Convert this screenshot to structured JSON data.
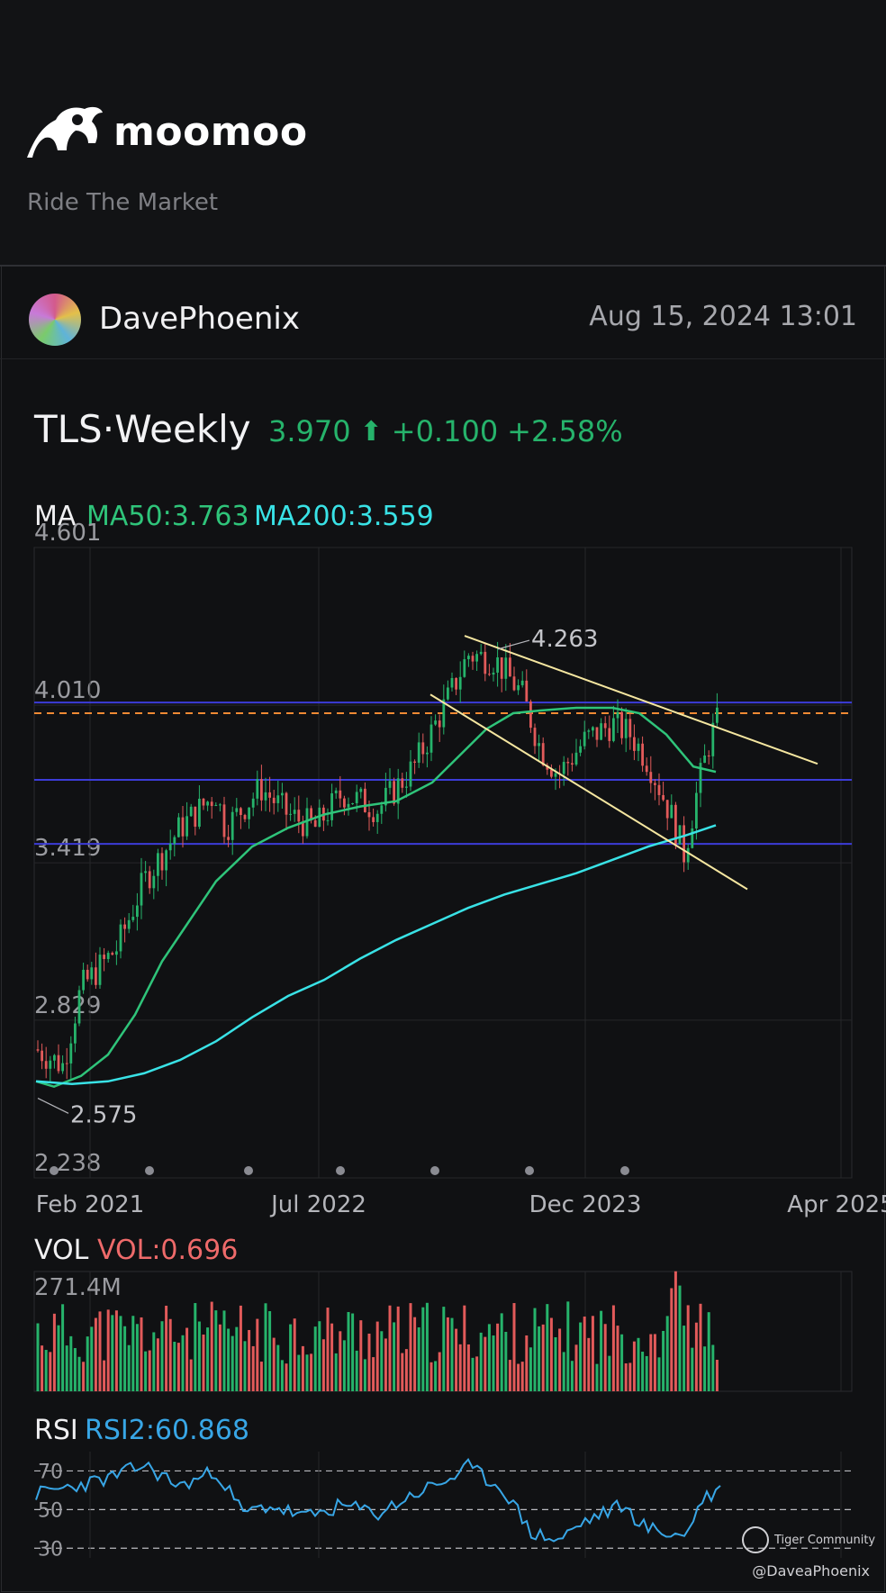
{
  "header": {
    "brand": "moomoo",
    "tagline": "Ride The Market"
  },
  "post": {
    "username": "DavePhoenix",
    "timestamp": "Aug 15, 2024 13:01"
  },
  "quote": {
    "title": "TLS·Weekly",
    "price": "3.970",
    "change": "+0.100",
    "change_pct": "+2.58%",
    "direction": "up"
  },
  "indicators": {
    "ma_label": "MA",
    "ma50": "MA50:3.763",
    "ma200": "MA200:3.559",
    "vol_label": "VOL",
    "vol_value": "VOL:0.696",
    "rsi_label": "RSI",
    "rsi_value": "RSI2:60.868"
  },
  "watermark": {
    "community": "Tiger Community",
    "handle": "@DaveaPhoenix"
  },
  "colors": {
    "up": "#26b36b",
    "down": "#e25a5a",
    "ma50": "#2fc47a",
    "ma200": "#39e2e6",
    "rsi": "#38a6e6",
    "level_lines": "#3c3cd8",
    "dashed_level": "#f08a34",
    "trendlines": "#f5e6a0"
  },
  "chart_data": [
    {
      "type": "candlestick",
      "title": "TLS·Weekly",
      "x_ticks": [
        "Feb 2021",
        "Jul 2022",
        "Dec 2023",
        "Apr 2025"
      ],
      "y_ticks": [
        4.601,
        4.01,
        3.419,
        2.829,
        2.238
      ],
      "ylim": [
        2.238,
        4.601
      ],
      "annotations": [
        {
          "label": "4.263",
          "value": 4.263,
          "kind": "high"
        },
        {
          "label": "2.575",
          "value": 2.575,
          "kind": "low"
        }
      ],
      "horizontal_levels": [
        4.02,
        3.73,
        3.49
      ],
      "dashed_level": 3.98,
      "last_close": 3.97,
      "ma50_last": 3.763,
      "ma200_last": 3.559,
      "grid": true
    },
    {
      "type": "bar",
      "title": "VOL",
      "ymax_label": "271.4M",
      "value_label": "VOL:0.696",
      "grid": true
    },
    {
      "type": "line",
      "title": "RSI",
      "series_name": "RSI2",
      "y_ticks": [
        70,
        50,
        30
      ],
      "ylim": [
        25,
        80
      ],
      "last": 60.868,
      "grid": true
    }
  ]
}
